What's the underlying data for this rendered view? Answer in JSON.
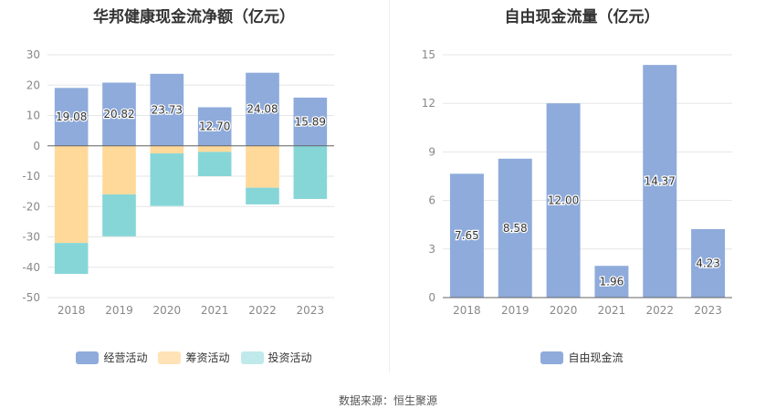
{
  "source_label": "数据来源：恒生聚源",
  "colors": {
    "operating": "#8eabdb",
    "financing": "#ffd99a",
    "investing": "#86d6d8",
    "fcf": "#8eabdb",
    "grid": "#e6e6e6",
    "axis_text": "#888888"
  },
  "chart_data": [
    {
      "type": "bar",
      "title": "华邦健康现金流净额（亿元）",
      "categories": [
        "2018",
        "2019",
        "2020",
        "2021",
        "2022",
        "2023"
      ],
      "ylim": [
        -50,
        30
      ],
      "yticks": [
        30,
        20,
        10,
        0,
        -10,
        -20,
        -30,
        -40,
        -50
      ],
      "stacked": true,
      "series": [
        {
          "name": "经营活动",
          "values": [
            19.08,
            20.82,
            23.73,
            12.7,
            24.08,
            15.89
          ],
          "color": "#8eabdb"
        },
        {
          "name": "筹资活动",
          "values": [
            -32.0,
            -16.0,
            -2.5,
            -2.0,
            -13.8,
            0.0
          ],
          "color": "#ffd99a"
        },
        {
          "name": "投资活动",
          "values": [
            -10.2,
            -13.8,
            -17.3,
            -8.0,
            -5.5,
            -17.5
          ],
          "color": "#86d6d8"
        }
      ],
      "data_labels": [
        "19.08",
        "20.82",
        "23.73",
        "12.70",
        "24.08",
        "15.89"
      ],
      "legend_position": "bottom",
      "grid": true
    },
    {
      "type": "bar",
      "title": "自由现金流量（亿元）",
      "categories": [
        "2018",
        "2019",
        "2020",
        "2021",
        "2022",
        "2023"
      ],
      "ylim": [
        0,
        15
      ],
      "yticks": [
        15,
        12,
        9,
        6,
        3,
        0
      ],
      "series": [
        {
          "name": "自由现金流",
          "values": [
            7.65,
            8.58,
            12.0,
            1.96,
            14.37,
            4.23
          ],
          "color": "#8eabdb"
        }
      ],
      "data_labels": [
        "7.65",
        "8.58",
        "12.00",
        "1.96",
        "14.37",
        "4.23"
      ],
      "legend_position": "bottom",
      "grid": true
    }
  ]
}
